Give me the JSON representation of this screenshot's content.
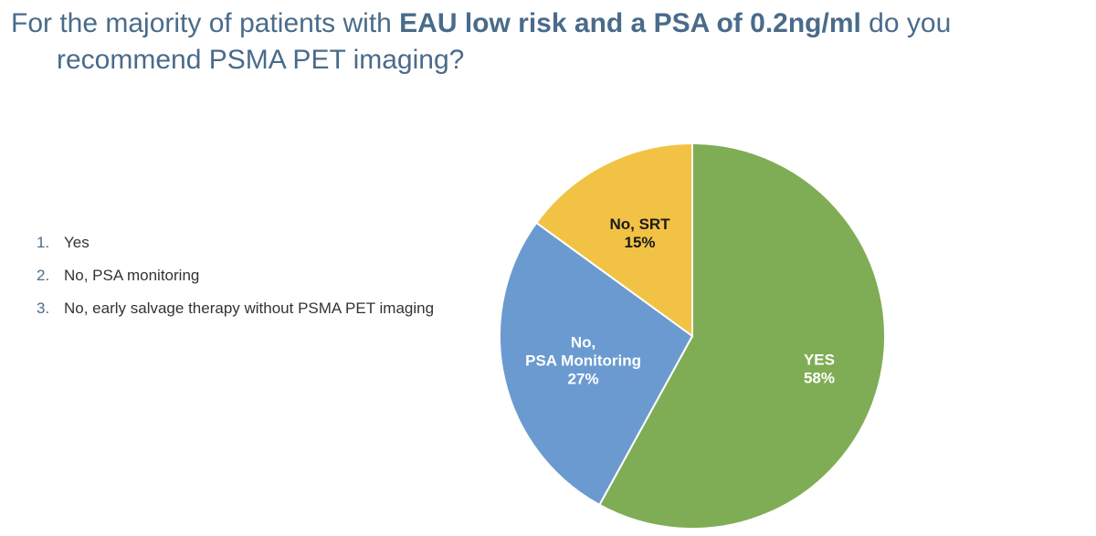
{
  "title": {
    "part1": "For the majority of patients with ",
    "bold": "EAU low risk and a PSA of 0.2ng/ml",
    "part2": " do you",
    "line2": "recommend PSMA PET imaging?"
  },
  "options": [
    {
      "num": "1.",
      "text": "Yes"
    },
    {
      "num": "2.",
      "text": "No, PSA monitoring"
    },
    {
      "num": "3.",
      "text": "No, early salvage therapy without PSMA PET imaging"
    }
  ],
  "chart_data": {
    "type": "pie",
    "slices": [
      {
        "label_lines": [
          "YES"
        ],
        "percent_label": "58%",
        "value": 58,
        "color": "#7fad55",
        "label_color": "#ffffff"
      },
      {
        "label_lines": [
          "No,",
          "PSA Monitoring"
        ],
        "percent_label": "27%",
        "value": 27,
        "color": "#6b9ad0",
        "label_color": "#ffffff"
      },
      {
        "label_lines": [
          "No, SRT"
        ],
        "percent_label": "15%",
        "value": 15,
        "color": "#f2c244",
        "label_color": "#1a1a1a"
      }
    ],
    "start": "12 o'clock",
    "direction": "clockwise"
  }
}
